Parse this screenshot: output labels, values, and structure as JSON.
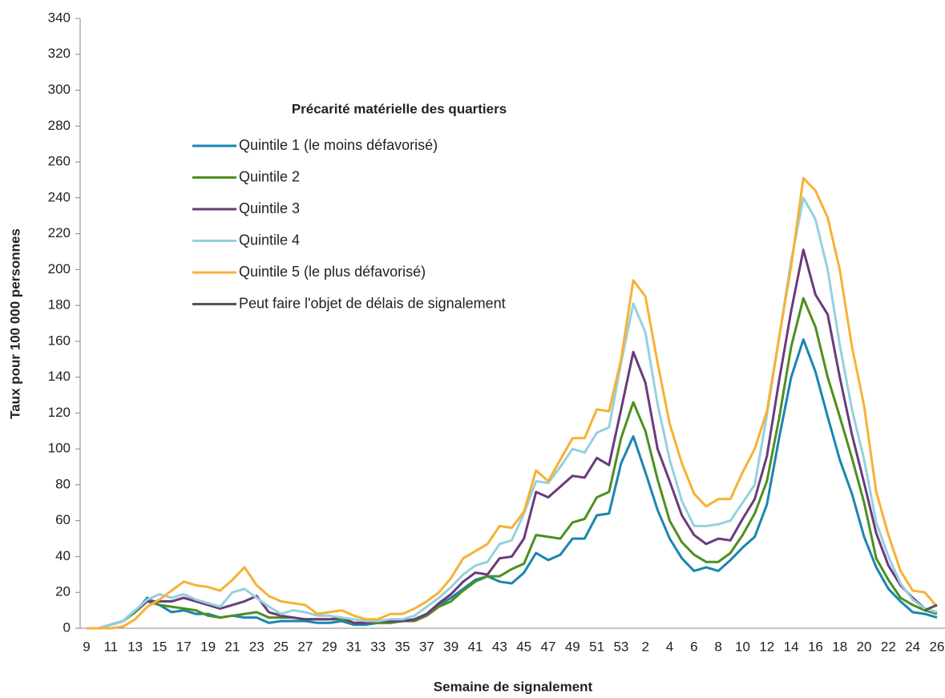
{
  "chart_data": {
    "type": "line",
    "x_label": "Semaine de signalement",
    "y_label": "Taux pour 100 000 personnes",
    "legend_title": "Précarité matérielle des quartiers",
    "legend_position": "upper left",
    "grid": false,
    "ylim": [
      0,
      340
    ],
    "yticks": [
      0,
      20,
      40,
      60,
      80,
      100,
      120,
      140,
      160,
      180,
      200,
      220,
      240,
      260,
      280,
      300,
      320,
      340
    ],
    "categories": [
      9,
      null,
      11,
      null,
      13,
      null,
      15,
      null,
      17,
      null,
      19,
      null,
      21,
      null,
      23,
      null,
      25,
      null,
      27,
      null,
      29,
      null,
      31,
      null,
      33,
      null,
      35,
      null,
      37,
      null,
      39,
      null,
      41,
      null,
      43,
      null,
      45,
      null,
      47,
      null,
      49,
      null,
      51,
      null,
      53,
      null,
      2,
      null,
      4,
      null,
      6,
      null,
      8,
      null,
      10,
      null,
      12,
      null,
      14,
      null,
      16,
      null,
      18,
      null,
      20,
      null,
      22,
      null,
      24,
      null,
      26
    ],
    "series": [
      {
        "name": "Quintile 1 (le moins défavorisé)",
        "color": "#1a85b0",
        "values": [
          0,
          0,
          2,
          4,
          9,
          17,
          13,
          9,
          10,
          8,
          8,
          6,
          7,
          6,
          6,
          3,
          4,
          4,
          4,
          3,
          3,
          4,
          2,
          2,
          3,
          3,
          4,
          5,
          8,
          13,
          17,
          22,
          27,
          29,
          26,
          25,
          31,
          42,
          38,
          41,
          50,
          50,
          63,
          64,
          92,
          107,
          87,
          66,
          50,
          39,
          32,
          34,
          32,
          38,
          45,
          51,
          69,
          106,
          140,
          161,
          143,
          118,
          94,
          75,
          51,
          34,
          22,
          15,
          9,
          8,
          6
        ]
      },
      {
        "name": "Quintile 2",
        "color": "#4e8f1e",
        "values": [
          0,
          0,
          2,
          4,
          9,
          15,
          13,
          12,
          11,
          10,
          7,
          6,
          7,
          8,
          9,
          6,
          6,
          6,
          5,
          5,
          5,
          5,
          3,
          3,
          3,
          3,
          4,
          4,
          7,
          12,
          15,
          21,
          26,
          29,
          29,
          33,
          36,
          52,
          51,
          50,
          59,
          61,
          73,
          76,
          106,
          126,
          110,
          83,
          60,
          48,
          41,
          37,
          37,
          42,
          52,
          64,
          82,
          117,
          157,
          184,
          168,
          140,
          118,
          95,
          70,
          39,
          27,
          17,
          13,
          10,
          8
        ]
      },
      {
        "name": "Quintile 3",
        "color": "#6a3b7c",
        "values": [
          0,
          0,
          2,
          4,
          10,
          15,
          15,
          15,
          17,
          15,
          13,
          11,
          13,
          15,
          18,
          9,
          7,
          6,
          5,
          5,
          5,
          6,
          3,
          3,
          4,
          4,
          4,
          5,
          8,
          14,
          19,
          26,
          31,
          30,
          39,
          40,
          50,
          76,
          73,
          79,
          85,
          84,
          95,
          91,
          122,
          154,
          137,
          100,
          82,
          63,
          52,
          47,
          50,
          49,
          61,
          72,
          96,
          138,
          177,
          211,
          186,
          175,
          140,
          108,
          81,
          53,
          35,
          24,
          17,
          11,
          9
        ]
      },
      {
        "name": "Quintile 4",
        "color": "#93d1e0",
        "values": [
          0,
          0,
          2,
          4,
          10,
          16,
          19,
          17,
          19,
          16,
          14,
          12,
          20,
          22,
          17,
          12,
          8,
          10,
          9,
          7,
          7,
          6,
          5,
          4,
          4,
          5,
          5,
          7,
          12,
          17,
          23,
          30,
          35,
          37,
          47,
          49,
          64,
          82,
          81,
          90,
          100,
          98,
          109,
          112,
          148,
          181,
          165,
          125,
          94,
          71,
          57,
          57,
          58,
          60,
          70,
          80,
          119,
          162,
          205,
          240,
          228,
          200,
          158,
          122,
          94,
          59,
          40,
          25,
          16,
          11,
          9
        ]
      },
      {
        "name": "Quintile 5 (le plus défavorisé)",
        "color": "#f7b134",
        "values": [
          0,
          0,
          0,
          1,
          5,
          12,
          16,
          21,
          26,
          24,
          23,
          21,
          27,
          34,
          24,
          18,
          15,
          14,
          13,
          8,
          9,
          10,
          7,
          5,
          5,
          8,
          8,
          11,
          15,
          20,
          28,
          39,
          43,
          47,
          57,
          56,
          65,
          88,
          82,
          94,
          106,
          106,
          122,
          121,
          150,
          194,
          185,
          148,
          114,
          92,
          75,
          68,
          72,
          72,
          87,
          100,
          121,
          162,
          202,
          251,
          244,
          229,
          200,
          157,
          124,
          76,
          52,
          32,
          21,
          20,
          12
        ]
      },
      {
        "name": "Peut faire l'objet de délais de signalement",
        "color": "#555555",
        "values": [
          null,
          null,
          null,
          null,
          null,
          null,
          null,
          null,
          null,
          null,
          null,
          null,
          null,
          null,
          null,
          null,
          null,
          null,
          null,
          null,
          null,
          null,
          null,
          null,
          null,
          null,
          null,
          null,
          null,
          null,
          null,
          null,
          null,
          null,
          null,
          null,
          null,
          null,
          null,
          null,
          null,
          null,
          null,
          null,
          null,
          null,
          null,
          null,
          null,
          null,
          null,
          null,
          null,
          null,
          null,
          null,
          null,
          null,
          null,
          null,
          null,
          null,
          null,
          null,
          null,
          null,
          null,
          null,
          null,
          10,
          13
        ]
      }
    ]
  }
}
